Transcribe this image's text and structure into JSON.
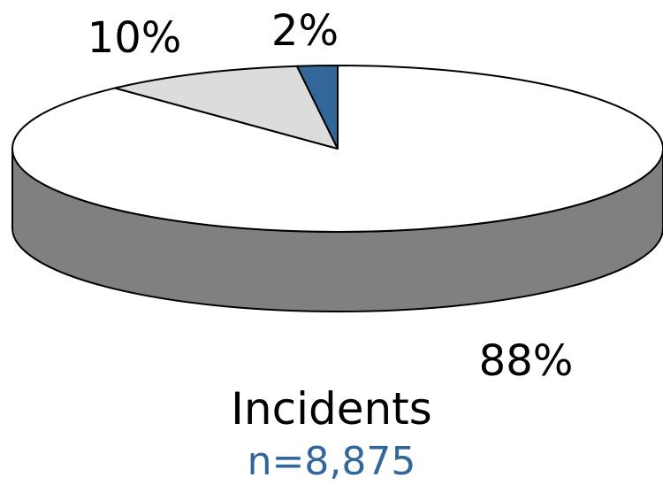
{
  "chart_data": {
    "type": "pie",
    "style": "3d",
    "slices": [
      {
        "label": "88%",
        "value": 88,
        "color": "#ffffff",
        "side_color": "#808080"
      },
      {
        "label": "10%",
        "value": 10,
        "color": "#dcdcdc",
        "side_color": "#6e6e6e"
      },
      {
        "label": "2%",
        "value": 2,
        "color": "#336699",
        "side_color": "#1f3f5f"
      }
    ],
    "title": "Incidents",
    "subtitle": "n=8,875",
    "subtitle_color": "#336699",
    "legend": "none"
  }
}
